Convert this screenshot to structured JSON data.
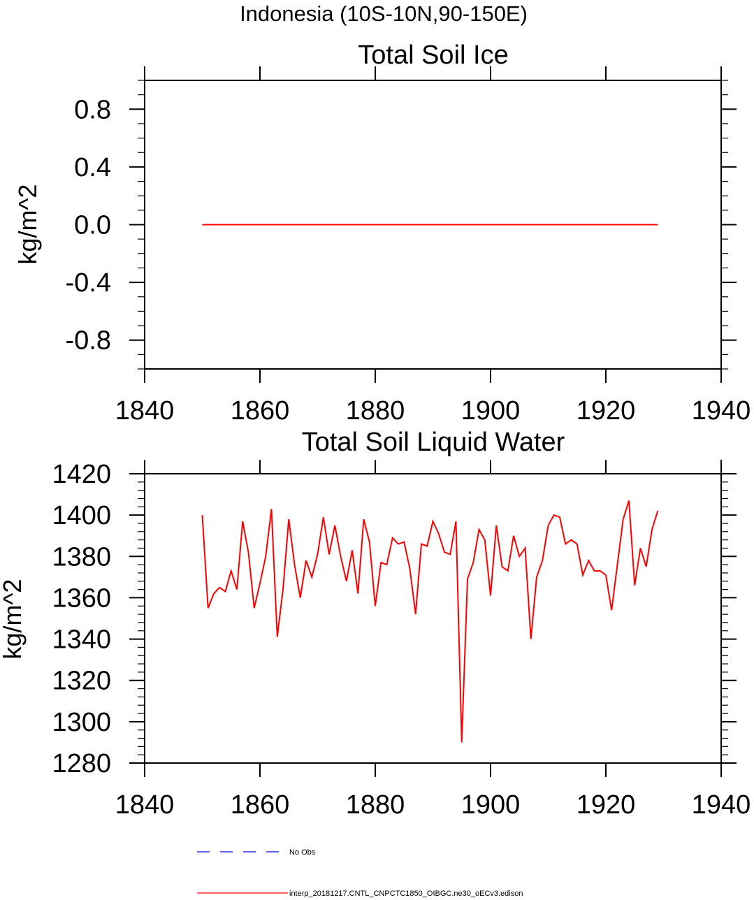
{
  "figure": {
    "title": "Indonesia (10S-10N,90-150E)"
  },
  "colors": {
    "model_line": "#ff0000",
    "obs_line": "#0000ff",
    "axis": "#000000"
  },
  "chart_data": [
    {
      "type": "line",
      "title": "Total Soil Ice",
      "xlabel": "",
      "ylabel": "kg/m^2",
      "xlim": [
        1840,
        1940
      ],
      "ylim": [
        -1.0,
        1.0
      ],
      "x_major_ticks": [
        1840,
        1860,
        1880,
        1900,
        1920,
        1940
      ],
      "x_tick_labels": [
        "1840",
        "1860",
        "1880",
        "1900",
        "1920",
        "1940"
      ],
      "y_major_ticks": [
        0.8,
        0.4,
        0.0,
        -0.4,
        -0.8
      ],
      "y_tick_labels": [
        "0.8",
        "0.4",
        "0.0",
        "-0.4",
        "-0.8"
      ],
      "y_minor_step": 0.1,
      "series": [
        {
          "name": "interp_20181217.CNTL_CNPCTC1850_OIBGC.ne30_oECv3.edison",
          "color": "#ff0000",
          "x_start": 1850,
          "x_step": 1,
          "values": [
            0,
            0,
            0,
            0,
            0,
            0,
            0,
            0,
            0,
            0,
            0,
            0,
            0,
            0,
            0,
            0,
            0,
            0,
            0,
            0,
            0,
            0,
            0,
            0,
            0,
            0,
            0,
            0,
            0,
            0,
            0,
            0,
            0,
            0,
            0,
            0,
            0,
            0,
            0,
            0,
            0,
            0,
            0,
            0,
            0,
            0,
            0,
            0,
            0,
            0,
            0,
            0,
            0,
            0,
            0,
            0,
            0,
            0,
            0,
            0,
            0,
            0,
            0,
            0,
            0,
            0,
            0,
            0,
            0,
            0,
            0,
            0,
            0,
            0,
            0,
            0,
            0,
            0,
            0,
            0
          ]
        }
      ]
    },
    {
      "type": "line",
      "title": "Total Soil Liquid Water",
      "xlabel": "",
      "ylabel": "kg/m^2",
      "xlim": [
        1840,
        1940
      ],
      "ylim": [
        1280,
        1420
      ],
      "x_major_ticks": [
        1840,
        1860,
        1880,
        1900,
        1920,
        1940
      ],
      "x_tick_labels": [
        "1840",
        "1860",
        "1880",
        "1900",
        "1920",
        "1940"
      ],
      "y_major_ticks": [
        1420,
        1400,
        1380,
        1360,
        1340,
        1320,
        1300,
        1280
      ],
      "y_tick_labels": [
        "1420",
        "1400",
        "1380",
        "1360",
        "1340",
        "1320",
        "1300",
        "1280"
      ],
      "y_minor_step": 4,
      "series": [
        {
          "name": "interp_20181217.CNTL_CNPCTC1850_OIBGC.ne30_oECv3.edison",
          "color": "#ff0000",
          "x_start": 1850,
          "x_step": 1,
          "values": [
            1400,
            1355,
            1362,
            1365,
            1363,
            1373,
            1364,
            1397,
            1382,
            1355,
            1367,
            1380,
            1403,
            1341,
            1364,
            1398,
            1376,
            1360,
            1378,
            1370,
            1381,
            1399,
            1381,
            1395,
            1380,
            1368,
            1383,
            1362,
            1398,
            1387,
            1356,
            1377,
            1376,
            1389,
            1386,
            1387,
            1374,
            1352,
            1386,
            1385,
            1397,
            1391,
            1382,
            1381,
            1397,
            1290,
            1369,
            1377,
            1393,
            1388,
            1361,
            1395,
            1375,
            1373,
            1390,
            1380,
            1384,
            1340,
            1370,
            1378,
            1395,
            1400,
            1399,
            1386,
            1388,
            1386,
            1371,
            1378,
            1373,
            1373,
            1371,
            1354,
            1376,
            1398,
            1407,
            1366,
            1384,
            1375,
            1393,
            1402
          ]
        }
      ]
    }
  ],
  "legend": [
    {
      "label": "No Obs",
      "style": "dashed",
      "color": "#0000ff"
    },
    {
      "label": "interp_20181217.CNTL_CNPCTC1850_OIBGC.ne30_oECv3.edison",
      "style": "solid",
      "color": "#ff0000"
    }
  ]
}
